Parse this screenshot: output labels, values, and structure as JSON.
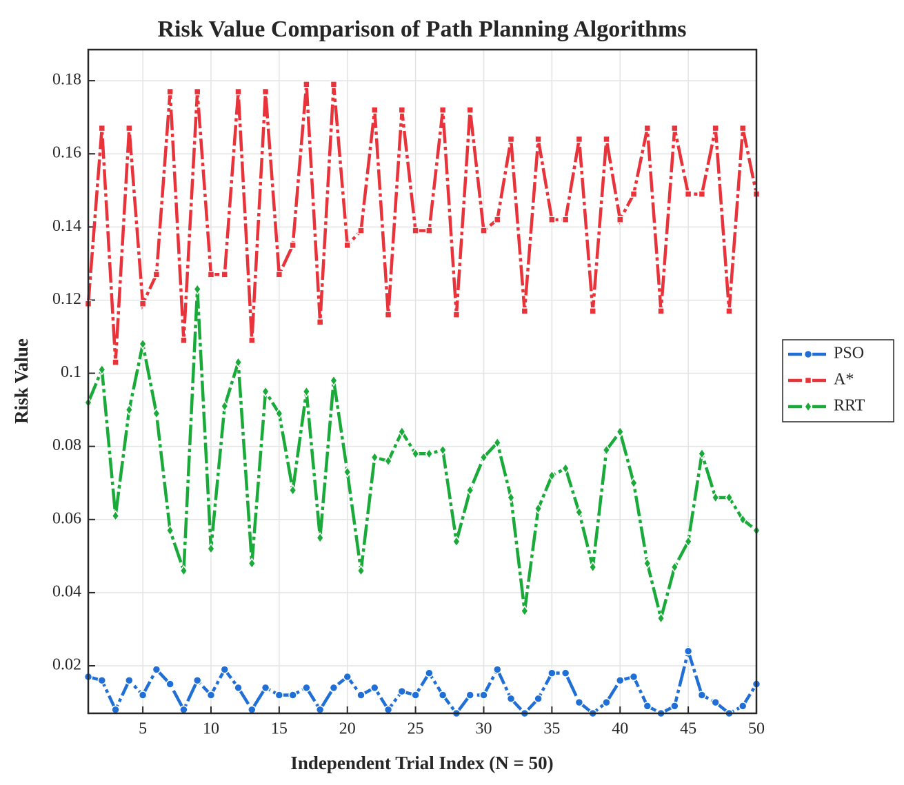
{
  "chart_data": {
    "type": "line",
    "title": "Risk Value Comparison of Path Planning Algorithms",
    "x_label": "Independent Trial Index (N = 50)",
    "y_label": "Risk Value",
    "x": [
      1,
      2,
      3,
      4,
      5,
      6,
      7,
      8,
      9,
      10,
      11,
      12,
      13,
      14,
      15,
      16,
      17,
      18,
      19,
      20,
      21,
      22,
      23,
      24,
      25,
      26,
      27,
      28,
      29,
      30,
      31,
      32,
      33,
      34,
      35,
      36,
      37,
      38,
      39,
      40,
      41,
      42,
      43,
      44,
      45,
      46,
      47,
      48,
      49,
      50
    ],
    "xlim": [
      1,
      50
    ],
    "xticks": [
      5,
      10,
      15,
      20,
      25,
      30,
      35,
      40,
      45,
      50
    ],
    "ylim": [
      0.007,
      0.1885
    ],
    "yticks": [
      0.02,
      0.04,
      0.06,
      0.08,
      0.1,
      0.12,
      0.14,
      0.16,
      0.18
    ],
    "grid": true,
    "legend_position": "outside-right",
    "series": [
      {
        "name": "PSO",
        "color": "#1f6fd6",
        "marker": "circle",
        "values": [
          0.017,
          0.016,
          0.008,
          0.016,
          0.012,
          0.019,
          0.015,
          0.008,
          0.016,
          0.012,
          0.019,
          0.014,
          0.008,
          0.014,
          0.012,
          0.012,
          0.014,
          0.008,
          0.014,
          0.017,
          0.012,
          0.014,
          0.008,
          0.013,
          0.012,
          0.018,
          0.012,
          0.007,
          0.012,
          0.012,
          0.019,
          0.011,
          0.007,
          0.011,
          0.018,
          0.018,
          0.01,
          0.007,
          0.01,
          0.016,
          0.017,
          0.009,
          0.007,
          0.009,
          0.024,
          0.012,
          0.01,
          0.007,
          0.009,
          0.015
        ]
      },
      {
        "name": "A*",
        "color": "#e8333a",
        "marker": "square",
        "values": [
          0.119,
          0.167,
          0.103,
          0.167,
          0.119,
          0.127,
          0.177,
          0.109,
          0.177,
          0.127,
          0.127,
          0.177,
          0.109,
          0.177,
          0.127,
          0.135,
          0.179,
          0.114,
          0.179,
          0.135,
          0.139,
          0.172,
          0.116,
          0.172,
          0.139,
          0.139,
          0.172,
          0.116,
          0.172,
          0.139,
          0.142,
          0.164,
          0.117,
          0.164,
          0.142,
          0.142,
          0.164,
          0.117,
          0.164,
          0.142,
          0.149,
          0.167,
          0.117,
          0.167,
          0.149,
          0.149,
          0.167,
          0.117,
          0.167,
          0.149
        ]
      },
      {
        "name": "RRT",
        "color": "#1aaa3a",
        "marker": "diamond",
        "values": [
          0.092,
          0.101,
          0.061,
          0.09,
          0.108,
          0.089,
          0.057,
          0.046,
          0.123,
          0.052,
          0.091,
          0.103,
          0.048,
          0.095,
          0.089,
          0.068,
          0.095,
          0.055,
          0.098,
          0.073,
          0.046,
          0.077,
          0.076,
          0.084,
          0.078,
          0.078,
          0.079,
          0.054,
          0.068,
          0.077,
          0.081,
          0.066,
          0.035,
          0.063,
          0.072,
          0.074,
          0.062,
          0.047,
          0.079,
          0.084,
          0.07,
          0.048,
          0.033,
          0.047,
          0.054,
          0.078,
          0.066,
          0.066,
          0.06,
          0.057
        ]
      }
    ]
  }
}
